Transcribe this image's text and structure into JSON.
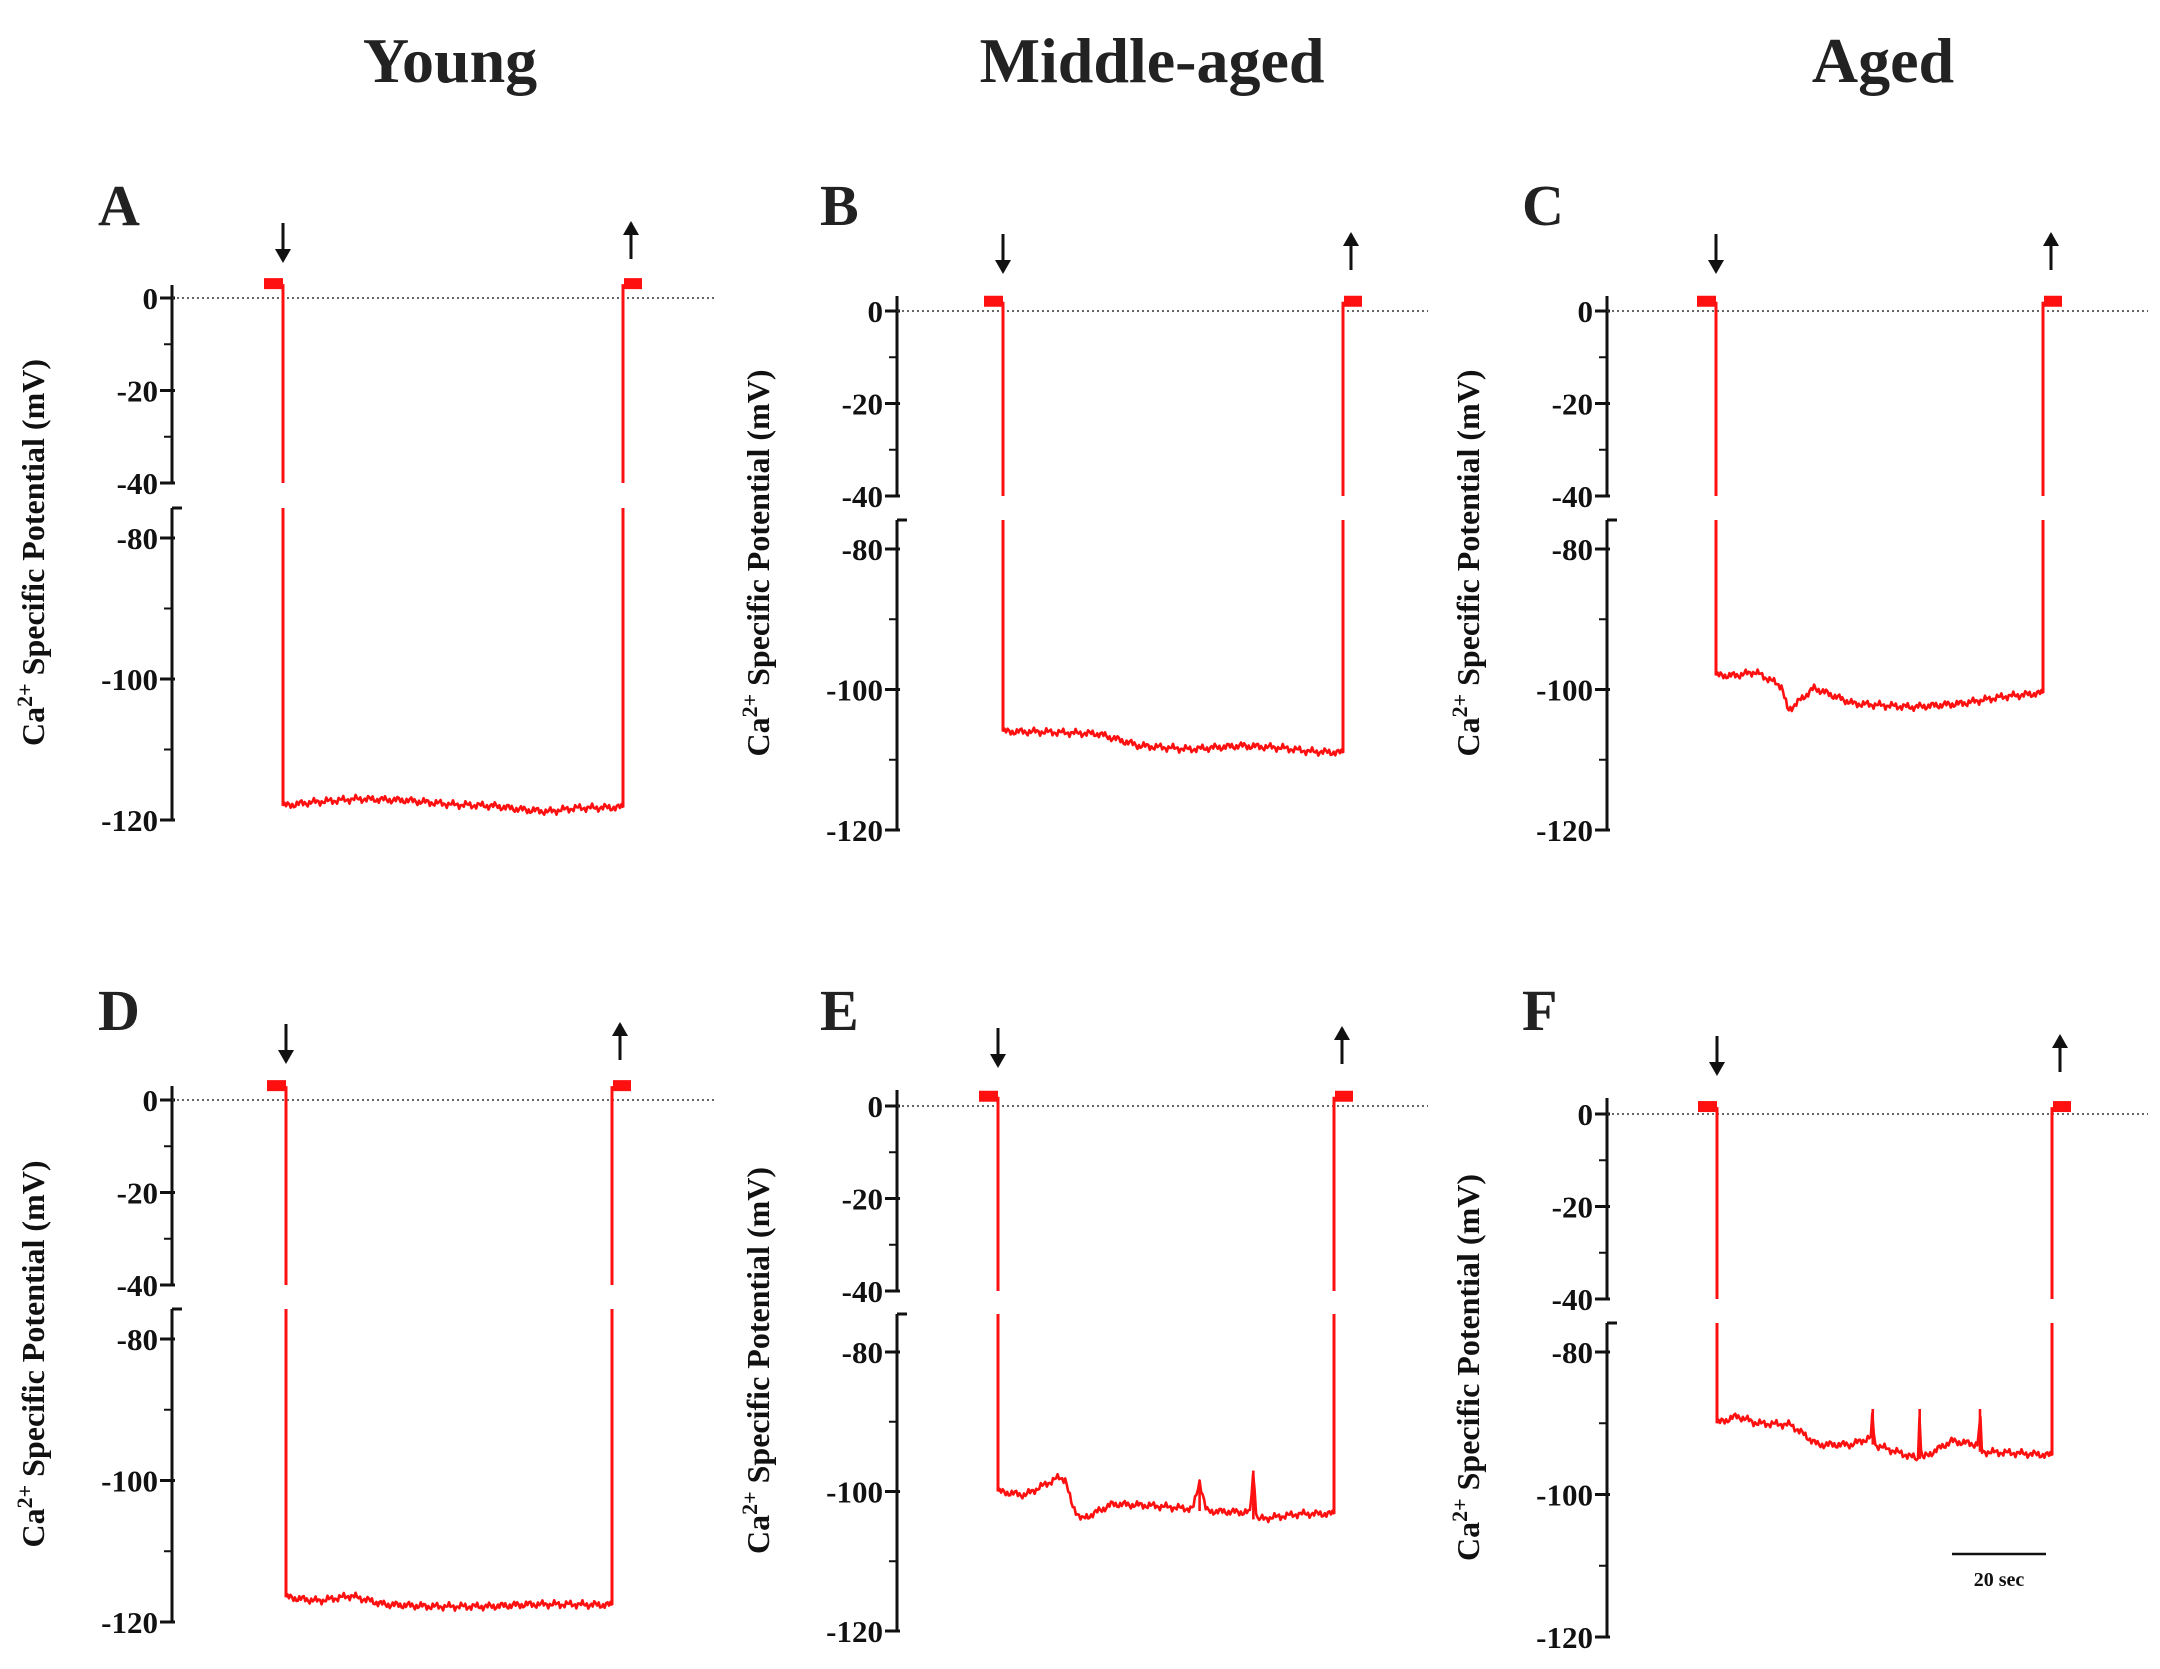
{
  "figure": {
    "column_titles": [
      "Young",
      "Middle-aged",
      "Aged"
    ],
    "scale_bar_label": "20 sec",
    "trace_color": "#ff1010"
  },
  "chart_data": [
    {
      "panel": "A",
      "type": "line",
      "ylabel": "Ca2+ Specific Potential (mV)",
      "ylim": [
        -120,
        5
      ],
      "axis_break": [
        -40,
        -80
      ],
      "yticks": [
        0,
        -20,
        -40,
        -80,
        -100,
        -120
      ],
      "baseline": 0,
      "start_level": 3,
      "end_level": 3,
      "series": [
        {
          "name": "Young",
          "t": [
            0,
            8,
            22,
            36,
            50,
            62,
            70,
            78,
            86,
            100
          ],
          "v": [
            -118,
            -117.5,
            -117,
            -117.2,
            -117.8,
            -118,
            -118.5,
            -118.8,
            -118.3,
            -118.2
          ]
        }
      ]
    },
    {
      "panel": "B",
      "type": "line",
      "ylabel": "Ca2+ Specific Potential (mV)",
      "ylim": [
        -120,
        5
      ],
      "axis_break": [
        -40,
        -80
      ],
      "yticks": [
        0,
        -20,
        -40,
        -80,
        -100,
        -120
      ],
      "baseline": 0,
      "start_level": 2,
      "end_level": 2,
      "series": [
        {
          "name": "Middle-aged",
          "t": [
            0,
            10,
            28,
            40,
            55,
            70,
            82,
            90,
            100
          ],
          "v": [
            -106,
            -106,
            -106.3,
            -108,
            -108.5,
            -108,
            -108.3,
            -108.8,
            -109
          ]
        }
      ]
    },
    {
      "panel": "C",
      "type": "line",
      "ylabel": "Ca2+ Specific Potential (mV)",
      "ylim": [
        -120,
        5
      ],
      "axis_break": [
        -40,
        -80
      ],
      "yticks": [
        0,
        -20,
        -40,
        -80,
        -100,
        -120
      ],
      "baseline": 0,
      "start_level": 2,
      "end_level": 2,
      "series": [
        {
          "name": "Aged",
          "t": [
            0,
            6,
            12,
            20,
            22,
            30,
            42,
            60,
            75,
            88,
            100
          ],
          "v": [
            -98,
            -98,
            -97.5,
            -99.5,
            -103,
            -99.8,
            -102,
            -102.5,
            -102,
            -101,
            -100.5
          ]
        }
      ]
    },
    {
      "panel": "D",
      "type": "line",
      "ylabel": "Ca2+ Specific Potential (mV)",
      "ylim": [
        -120,
        5
      ],
      "axis_break": [
        -40,
        -80
      ],
      "yticks": [
        0,
        -20,
        -40,
        -80,
        -100,
        -120
      ],
      "baseline": 0,
      "start_level": 3,
      "end_level": 3,
      "series": [
        {
          "name": "Young",
          "t": [
            0,
            10,
            20,
            30,
            45,
            62,
            75,
            88,
            100
          ],
          "v": [
            -116.5,
            -117,
            -116.3,
            -117.5,
            -117.8,
            -117.8,
            -117.5,
            -117.5,
            -117.6
          ]
        }
      ]
    },
    {
      "panel": "E",
      "type": "line",
      "ylabel": "Ca2+ Specific Potential (mV)",
      "ylim": [
        -120,
        5
      ],
      "axis_break": [
        -40,
        -80
      ],
      "yticks": [
        0,
        -20,
        -40,
        -80,
        -100,
        -120
      ],
      "baseline": 0,
      "start_level": 2,
      "end_level": 2,
      "series": [
        {
          "name": "Middle-aged",
          "t": [
            0,
            8,
            18,
            20,
            22,
            25,
            34,
            45,
            58,
            60,
            62,
            75,
            76,
            77,
            90,
            100
          ],
          "v": [
            -100,
            -100.5,
            -98,
            -98.2,
            -102,
            -104,
            -101.8,
            -102,
            -102.5,
            -98.5,
            -102.8,
            -103,
            -97,
            -104,
            -103.2,
            -103.2
          ]
        }
      ]
    },
    {
      "panel": "F",
      "type": "line",
      "ylabel": "Ca2+ Specific Potential (mV)",
      "ylim": [
        -120,
        5
      ],
      "axis_break": [
        -40,
        -80
      ],
      "yticks": [
        0,
        -20,
        -40,
        -80,
        -100,
        -120
      ],
      "baseline": 0,
      "start_level": 1.5,
      "end_level": 1.5,
      "series": [
        {
          "name": "Aged",
          "t": [
            0,
            6,
            12,
            22,
            30,
            40,
            46,
            46.5,
            47,
            60,
            60.5,
            61,
            70,
            78,
            78.5,
            79,
            90,
            100
          ],
          "v": [
            -90,
            -89,
            -90,
            -90.2,
            -93,
            -93,
            -92,
            -88,
            -93,
            -95,
            -88,
            -95,
            -92.5,
            -93,
            -88,
            -94,
            -94.2,
            -94.5
          ]
        }
      ]
    }
  ]
}
